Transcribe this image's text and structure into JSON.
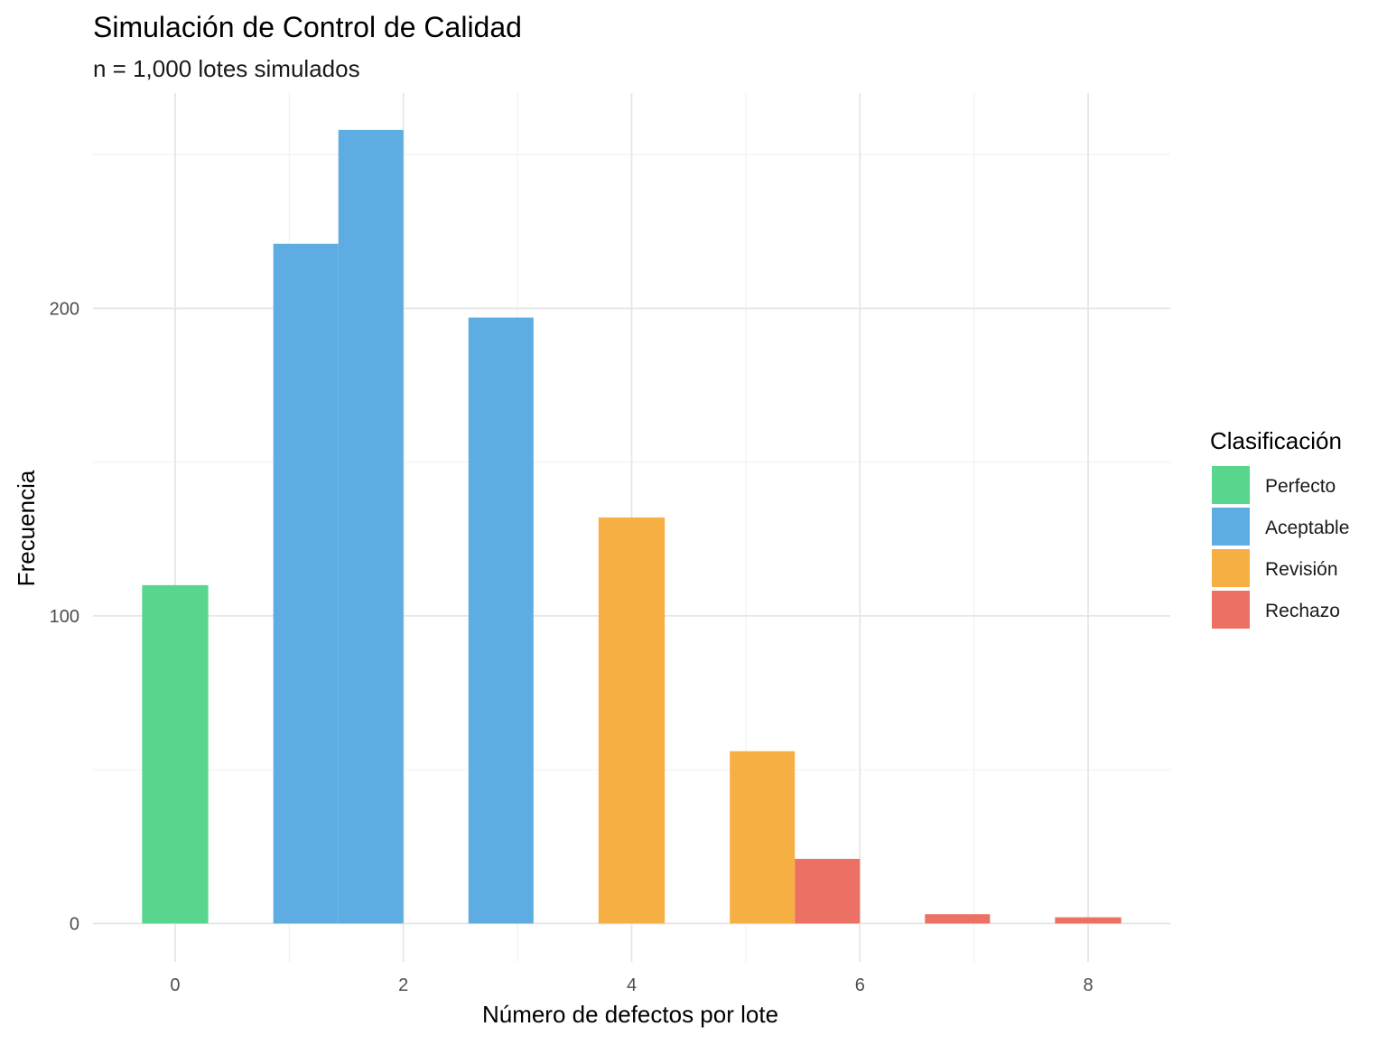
{
  "chart_data": {
    "type": "bar",
    "title": "Simulación de Control de Calidad",
    "subtitle": "n = 1,000 lotes simulados",
    "xlabel": "Número de defectos por lote",
    "ylabel": "Frecuencia",
    "xlim": [
      -0.72,
      8.72
    ],
    "ylim": [
      -12.5,
      270
    ],
    "x_ticks": [
      0,
      2,
      4,
      6,
      8
    ],
    "y_ticks": [
      0,
      100,
      200
    ],
    "grid": true,
    "bars": [
      {
        "x_start": -0.29,
        "x_end": 0.29,
        "value": 110,
        "category": "Perfecto"
      },
      {
        "x_start": 0.86,
        "x_end": 1.43,
        "value": 221,
        "category": "Aceptable"
      },
      {
        "x_start": 1.43,
        "x_end": 2.0,
        "value": 258,
        "category": "Aceptable"
      },
      {
        "x_start": 2.57,
        "x_end": 3.14,
        "value": 197,
        "category": "Aceptable"
      },
      {
        "x_start": 3.71,
        "x_end": 4.29,
        "value": 132,
        "category": "Revisión"
      },
      {
        "x_start": 4.86,
        "x_end": 5.43,
        "value": 56,
        "category": "Revisión"
      },
      {
        "x_start": 5.43,
        "x_end": 6.0,
        "value": 21,
        "category": "Rechazo"
      },
      {
        "x_start": 6.57,
        "x_end": 7.14,
        "value": 3,
        "category": "Rechazo"
      },
      {
        "x_start": 7.71,
        "x_end": 8.29,
        "value": 2,
        "category": "Rechazo"
      }
    ],
    "legend": {
      "title": "Clasificación",
      "position": "right",
      "items": [
        {
          "name": "Perfecto",
          "color": "#58D68D"
        },
        {
          "name": "Aceptable",
          "color": "#5DADE2"
        },
        {
          "name": "Revisión",
          "color": "#F5AF42"
        },
        {
          "name": "Rechazo",
          "color": "#EC7063"
        }
      ]
    }
  }
}
